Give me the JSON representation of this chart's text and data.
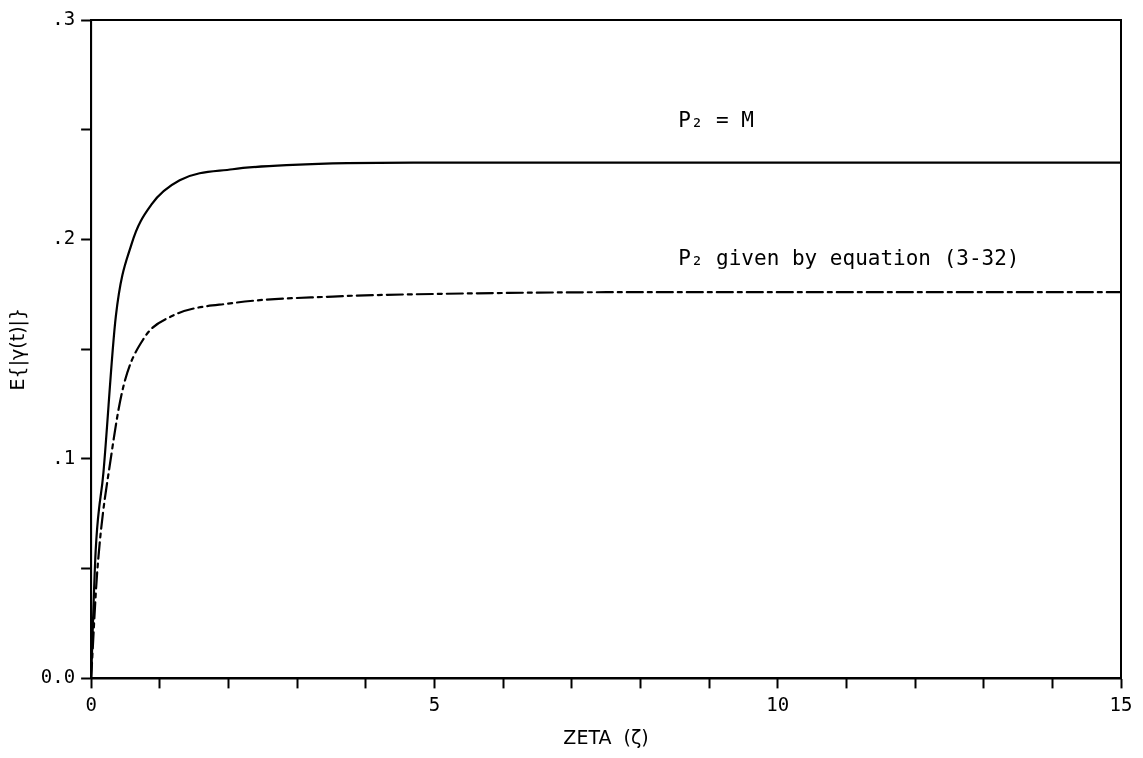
{
  "chart_data": {
    "type": "line",
    "xlabel": "ZETA  (ζ)",
    "ylabel": "E{|γ(t)|}",
    "x": [
      0,
      0.066,
      0.18,
      0.36,
      0.59,
      0.88,
      1.29,
      2.06,
      2.94,
      4.69,
      8,
      15
    ],
    "series": [
      {
        "color": "#000000",
        "line_style": "solid",
        "values": [
          0,
          0.058,
          0.094,
          0.165,
          0.198,
          0.216,
          0.227,
          0.232,
          0.234,
          0.235,
          0.235,
          0.235
        ]
      },
      {
        "color": "#000000",
        "line_style": "dashed",
        "x": [
          0,
          0.09,
          0.3,
          0.47,
          0.77,
          1.17,
          2.06,
          3.52,
          4.69,
          8,
          15
        ],
        "values": [
          0,
          0.049,
          0.103,
          0.133,
          0.155,
          0.165,
          0.171,
          0.174,
          0.175,
          0.176,
          0.176
        ]
      }
    ],
    "xlim": [
      0,
      15
    ],
    "xticks": [
      0,
      {
        "value": 1,
        "label": null
      },
      {
        "value": 2,
        "label": null
      },
      {
        "value": 3,
        "label": null
      },
      {
        "value": 4,
        "label": null
      },
      5,
      {
        "value": 6,
        "label": null
      },
      {
        "value": 7,
        "label": null
      },
      {
        "value": 8,
        "label": null
      },
      {
        "value": 9,
        "label": null
      },
      10,
      {
        "value": 11,
        "label": null
      },
      {
        "value": 12,
        "label": null
      },
      {
        "value": 13,
        "label": null
      },
      {
        "value": 14,
        "label": null
      },
      15
    ],
    "ylim": [
      0,
      0.3
    ],
    "yticks": [
      {
        "value": 0,
        "label": "0.0"
      },
      {
        "value": 0.05,
        "label": null
      },
      {
        "value": 0.1,
        "label": ".1"
      },
      {
        "value": 0.15,
        "label": null
      },
      {
        "value": 0.2,
        "label": ".2"
      },
      {
        "value": 0.25,
        "label": null
      },
      {
        "value": 0.3,
        "label": ".3"
      }
    ],
    "annotations": [
      "P₂ = M",
      "P₂ given by equation (3-32)"
    ],
    "grid": false,
    "legend": false,
    "marker": "none"
  }
}
